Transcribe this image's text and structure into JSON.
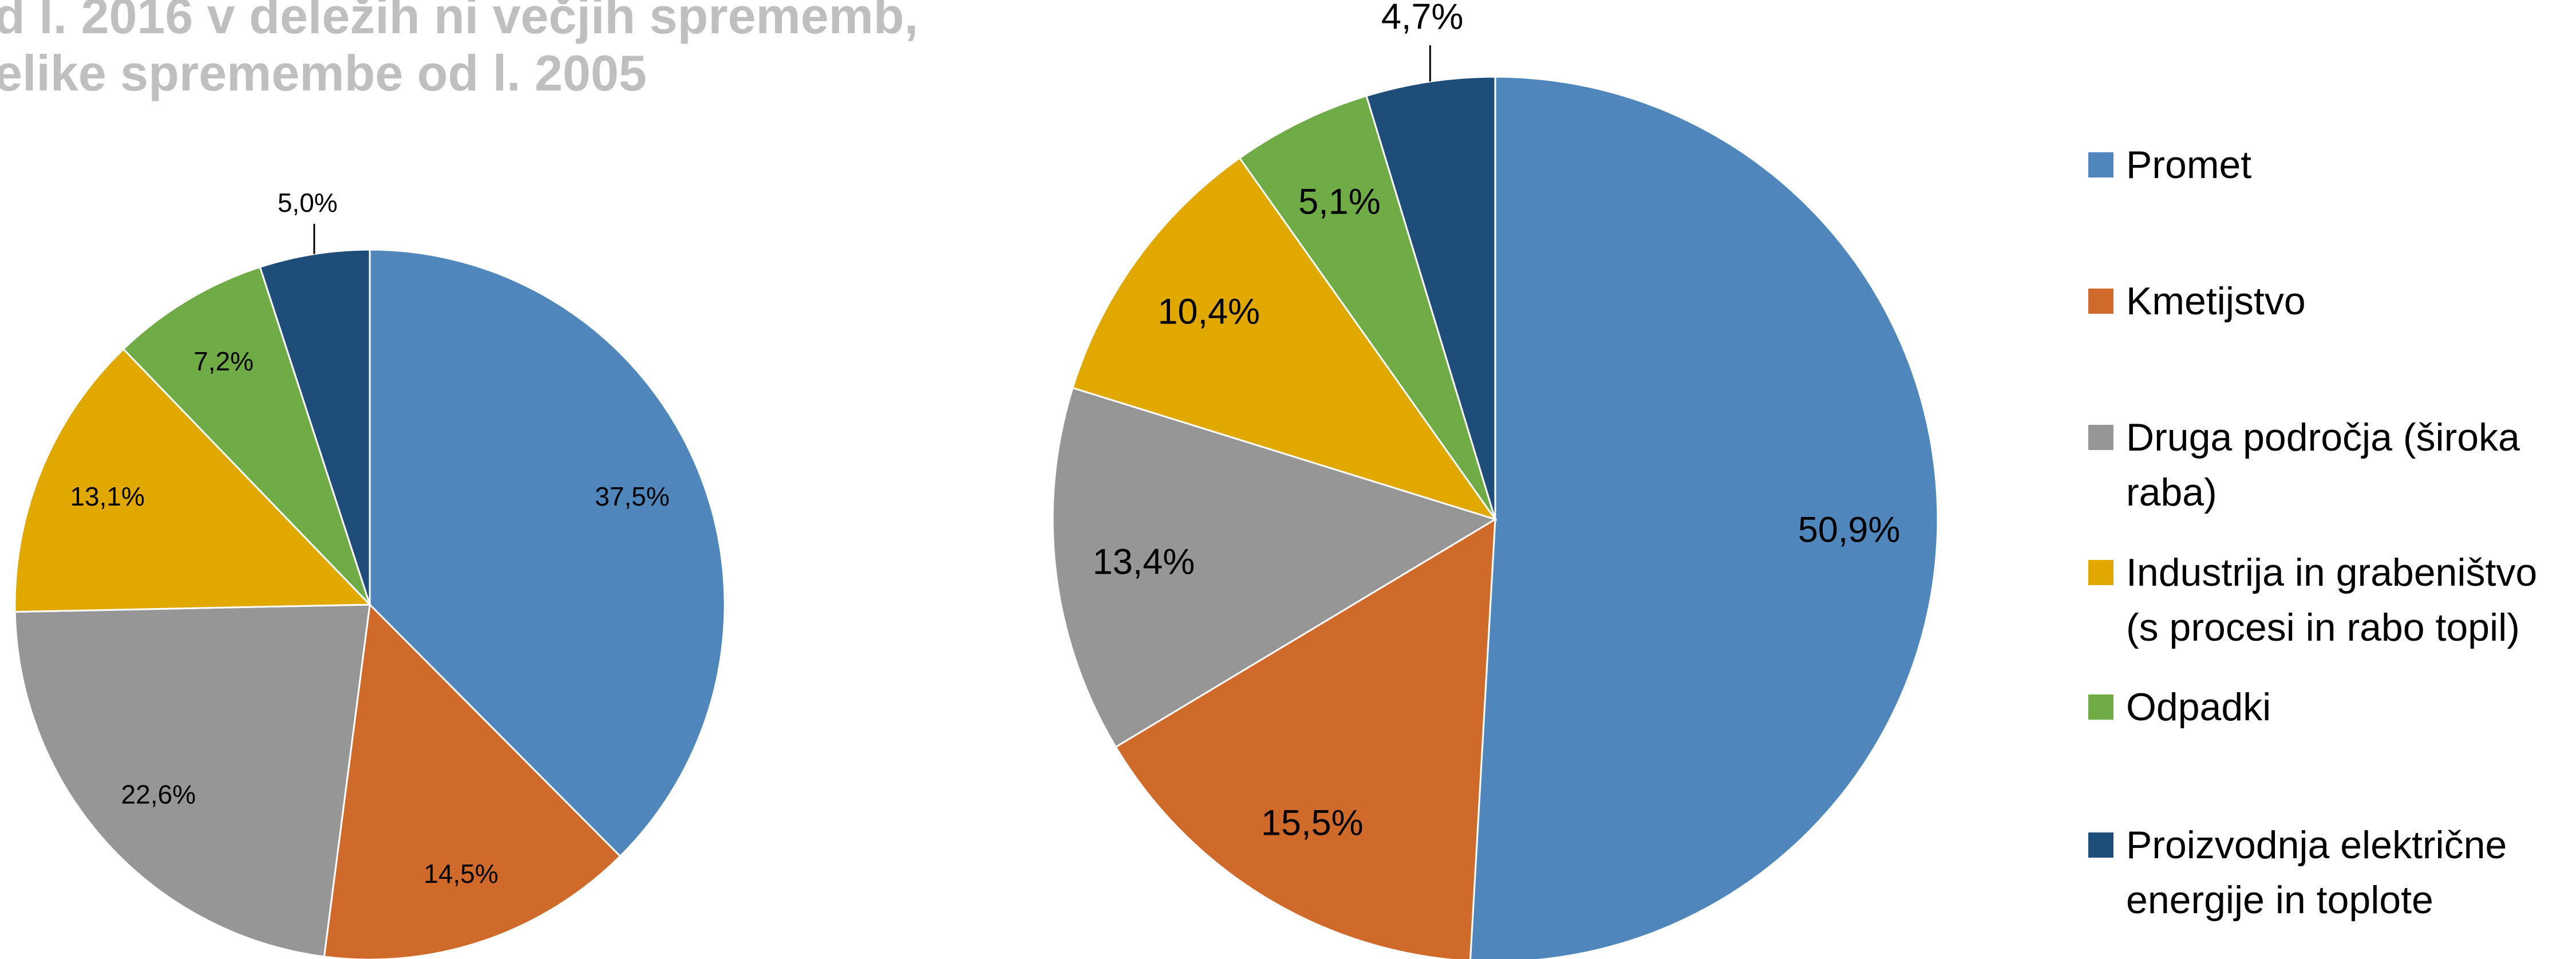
{
  "title": [
    "d l. 2016 v deležih ni večjih sprememb,",
    "elike spremembe od l. 2005"
  ],
  "legend": {
    "categories": [
      "Promet",
      "Kmetijstvo",
      "Druga področja (široka raba)",
      "Industrija in grabeništvo (s procesi in rabo topil)",
      "Odpadki",
      "Proizvodnja električne energije in toplote"
    ],
    "colors": [
      "#4f87bd",
      "#d06a2a",
      "#969696",
      "#e1a800",
      "#6fac46",
      "#1f4d7a"
    ]
  },
  "chart_data": [
    {
      "type": "pie",
      "values": [
        37.5,
        14.5,
        22.6,
        13.1,
        7.2,
        5.0
      ],
      "value_labels": [
        "37,5%",
        "14,5%",
        "22,6%",
        "13,1%",
        "7,2%",
        "5,0%"
      ]
    },
    {
      "type": "pie",
      "values": [
        50.9,
        15.5,
        13.4,
        10.4,
        5.1,
        4.7
      ],
      "value_labels": [
        "50,9%",
        "15,5%",
        "13,4%",
        "10,4%",
        "5,1%",
        "4,7%"
      ]
    }
  ]
}
